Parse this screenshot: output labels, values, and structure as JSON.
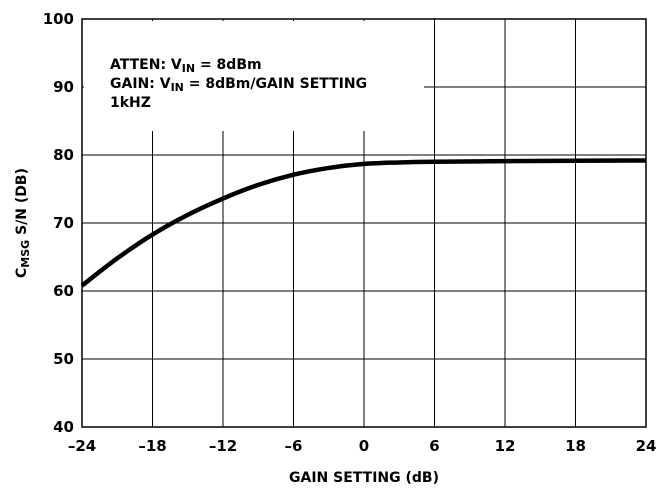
{
  "chart_data": {
    "type": "line",
    "title": "",
    "xlabel": "GAIN SETTING (dB)",
    "ylabel": {
      "prefix": "C",
      "subscript": "MSG",
      "suffix": " S/N (DB)"
    },
    "xlim": [
      -24,
      24
    ],
    "ylim": [
      40,
      100
    ],
    "x_ticks": [
      -24,
      -18,
      -12,
      -6,
      0,
      6,
      12,
      18,
      24
    ],
    "y_ticks": [
      40,
      50,
      60,
      70,
      80,
      90,
      100
    ],
    "x_tick_labels": [
      "–24",
      "–18",
      "–12",
      "–6",
      "0",
      "6",
      "12",
      "18",
      "24"
    ],
    "y_tick_labels": [
      "40",
      "50",
      "60",
      "70",
      "80",
      "90",
      "100"
    ],
    "grid": true,
    "annotations": [
      {
        "prefix": "ATTEN: V",
        "subscript": "IN",
        "suffix": " = 8dBm"
      },
      {
        "prefix": "GAIN: V",
        "subscript": "IN",
        "suffix": " = 8dBm/GAIN SETTING"
      },
      {
        "prefix": "1kHZ",
        "subscript": "",
        "suffix": ""
      }
    ],
    "series": [
      {
        "x": [
          -24,
          -21,
          -18,
          -15,
          -12,
          -9,
          -6,
          -3,
          0,
          3,
          6,
          12,
          18,
          24
        ],
        "y": [
          60.8,
          64.8,
          68.3,
          71.2,
          73.6,
          75.6,
          77.1,
          78.1,
          78.7,
          78.9,
          79.0,
          79.1,
          79.15,
          79.2
        ]
      }
    ],
    "line_color": "#000000"
  }
}
